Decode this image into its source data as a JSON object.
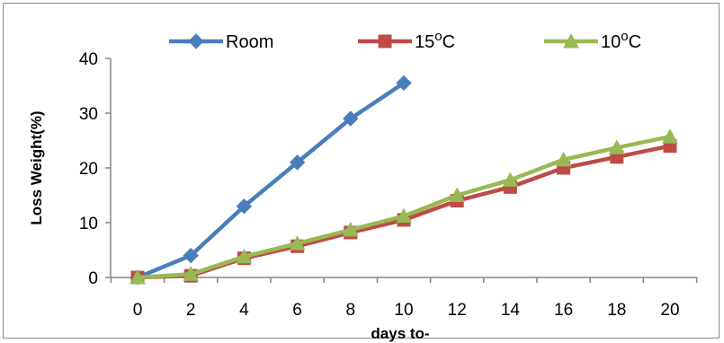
{
  "chart_data": {
    "type": "line",
    "title": "",
    "xlabel": "days to-",
    "ylabel": "Loss Weight(%)",
    "x": [
      0,
      2,
      4,
      6,
      8,
      10,
      12,
      14,
      16,
      18,
      20
    ],
    "xlim": [
      0,
      20
    ],
    "ylim": [
      0,
      40
    ],
    "yticks": [
      0,
      10,
      20,
      30,
      40
    ],
    "xticks": [
      0,
      2,
      4,
      6,
      8,
      10,
      12,
      14,
      16,
      18,
      20
    ],
    "grid": false,
    "legend_position": "top",
    "series": [
      {
        "name": "Room",
        "legend_base": "Room",
        "legend_sup": "",
        "legend_suffix": "",
        "color": "#4a7ebb",
        "marker": "diamond",
        "values": [
          0,
          4,
          13,
          21,
          29,
          35.5,
          null,
          null,
          null,
          null,
          null
        ]
      },
      {
        "name": "15oC",
        "legend_base": "15",
        "legend_sup": "o",
        "legend_suffix": "C",
        "color": "#be4b48",
        "marker": "square",
        "values": [
          0,
          0.3,
          3.5,
          5.7,
          8.2,
          10.5,
          14,
          16.5,
          20,
          22,
          24
        ]
      },
      {
        "name": "10oC",
        "legend_base": "10",
        "legend_sup": "o",
        "legend_suffix": "C",
        "color": "#98b954",
        "marker": "triangle",
        "values": [
          0,
          0.6,
          3.8,
          6.2,
          8.7,
          11.2,
          15,
          17.8,
          21.5,
          23.7,
          25.7
        ]
      }
    ]
  }
}
